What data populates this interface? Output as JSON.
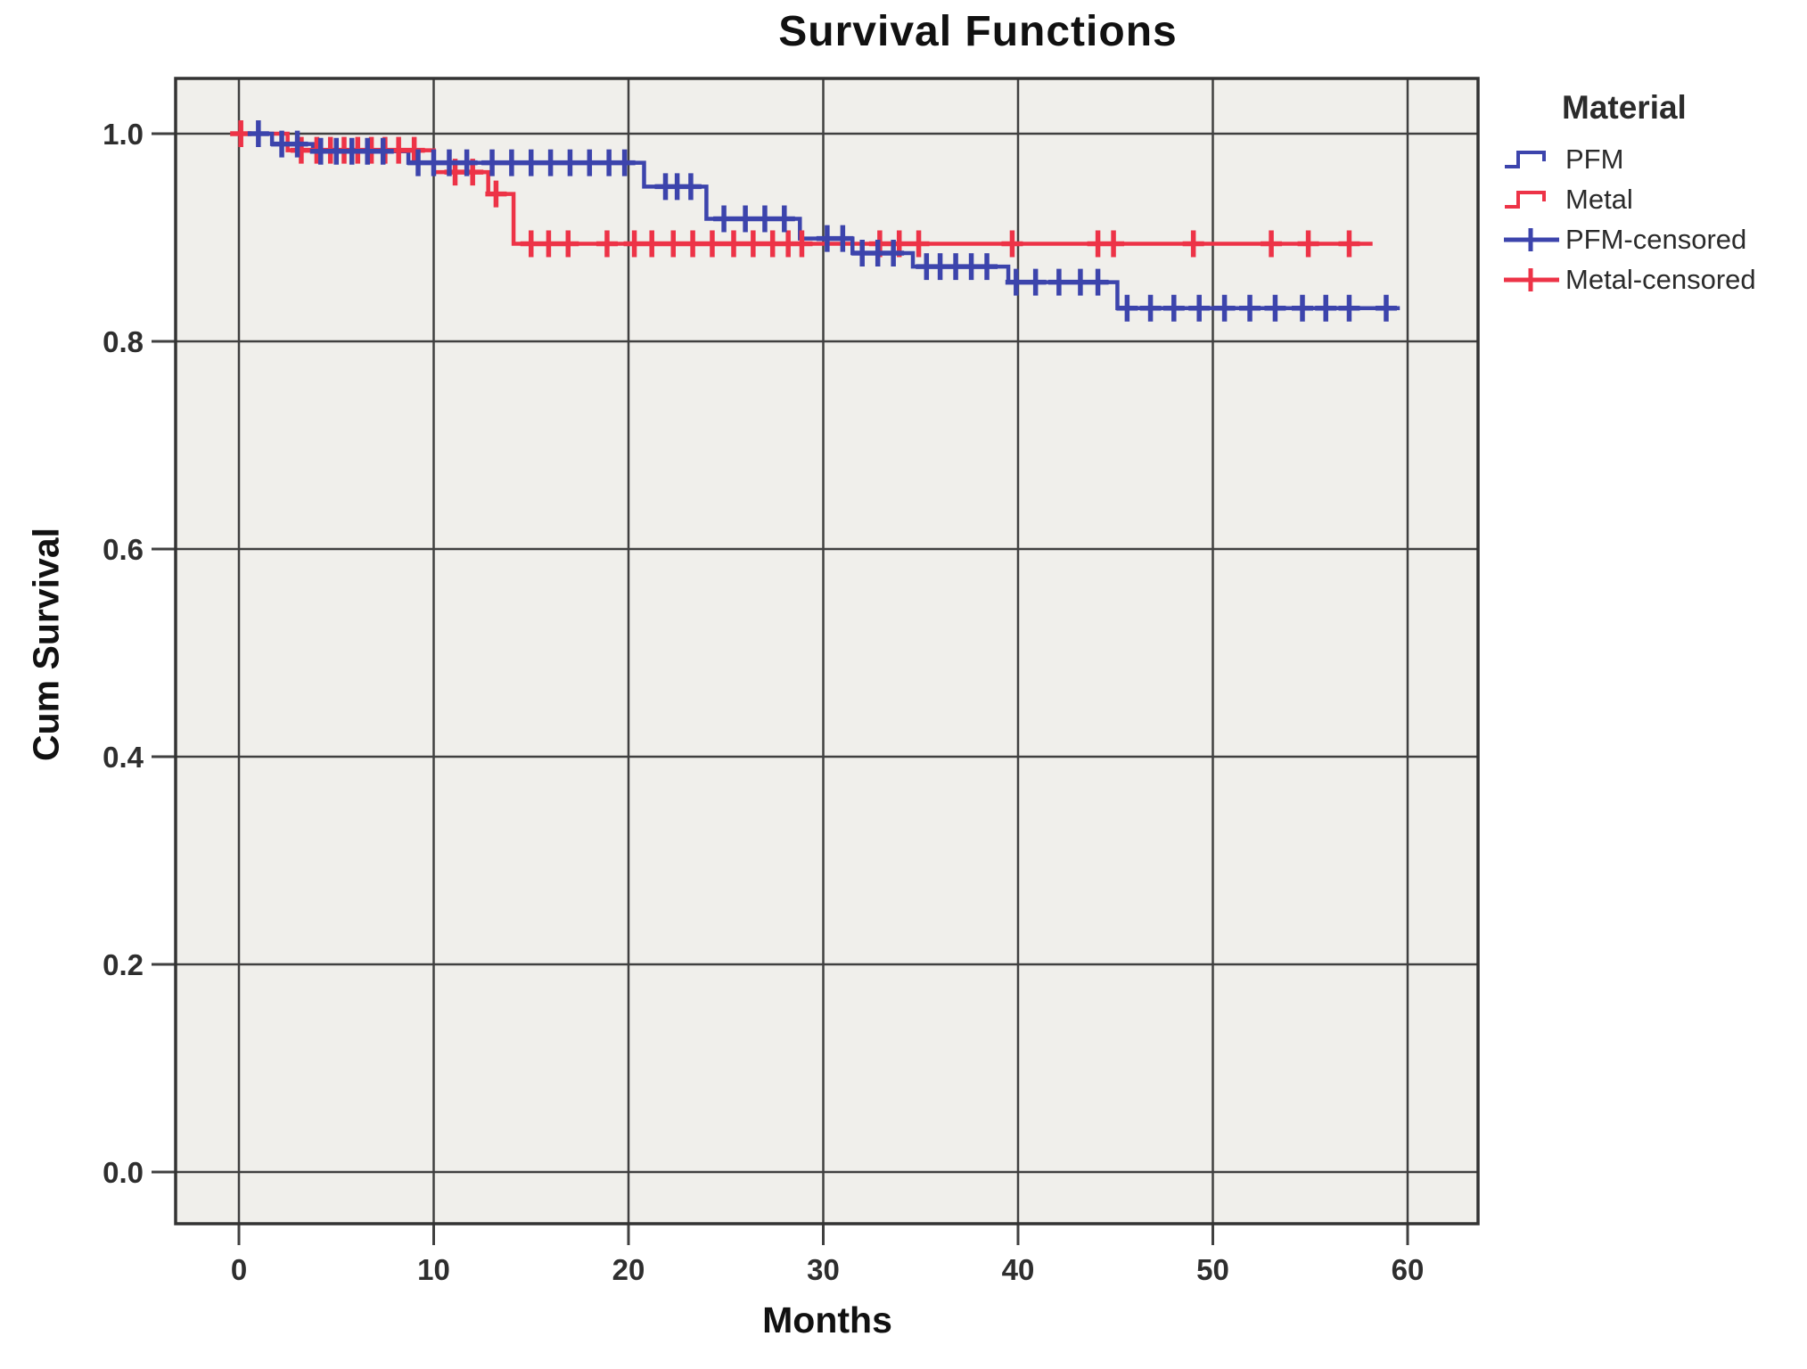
{
  "colors": {
    "pfm": "#3C44AC",
    "metal": "#ED3347",
    "grid": "#404040",
    "border": "#333333",
    "plot_bg": "#f0efeb",
    "text": "#2e2e2e"
  },
  "chart_data": {
    "type": "line",
    "subtype": "kaplan-meier-step",
    "title": "Survival Functions",
    "xlabel": "Months",
    "ylabel": "Cum Survival",
    "legend_title": "Material",
    "legend_position": "top-right",
    "grid": true,
    "xlim": [
      -3.2,
      63.6
    ],
    "ylim": [
      -0.05,
      1.055
    ],
    "xtick_labels": [
      "0",
      "10",
      "20",
      "30",
      "40",
      "50",
      "60"
    ],
    "ytick_labels": [
      "0.0",
      "0.2",
      "0.4",
      "0.6",
      "0.8",
      "1.0"
    ],
    "series": [
      {
        "name": "Metal",
        "color": "#ED3347",
        "kind": "step",
        "steps": [
          [
            0,
            1.0
          ],
          [
            2.5,
            0.984
          ],
          [
            10.0,
            0.963
          ],
          [
            12.8,
            0.942
          ],
          [
            14.1,
            0.894
          ],
          [
            58.2,
            0.894
          ]
        ]
      },
      {
        "name": "PFM",
        "color": "#3C44AC",
        "kind": "step",
        "steps": [
          [
            0,
            1.0
          ],
          [
            1.7,
            0.99
          ],
          [
            3.8,
            0.983
          ],
          [
            8.7,
            0.972
          ],
          [
            20.8,
            0.949
          ],
          [
            24.0,
            0.918
          ],
          [
            28.8,
            0.899
          ],
          [
            31.5,
            0.885
          ],
          [
            34.6,
            0.872
          ],
          [
            39.5,
            0.857
          ],
          [
            45.1,
            0.832
          ],
          [
            59.6,
            0.832
          ]
        ]
      },
      {
        "name": "Metal-censored",
        "color": "#ED3347",
        "kind": "censor",
        "points": [
          [
            0.1,
            1.0
          ],
          [
            3.2,
            0.984
          ],
          [
            4.0,
            0.984
          ],
          [
            4.7,
            0.984
          ],
          [
            5.4,
            0.984
          ],
          [
            6.1,
            0.984
          ],
          [
            6.8,
            0.984
          ],
          [
            7.5,
            0.984
          ],
          [
            8.2,
            0.984
          ],
          [
            9.0,
            0.984
          ],
          [
            11.1,
            0.963
          ],
          [
            12.0,
            0.963
          ],
          [
            13.2,
            0.942
          ],
          [
            15.0,
            0.894
          ],
          [
            15.9,
            0.894
          ],
          [
            16.9,
            0.894
          ],
          [
            18.9,
            0.894
          ],
          [
            20.3,
            0.894
          ],
          [
            21.2,
            0.894
          ],
          [
            22.3,
            0.894
          ],
          [
            23.3,
            0.894
          ],
          [
            24.3,
            0.894
          ],
          [
            25.4,
            0.894
          ],
          [
            26.4,
            0.894
          ],
          [
            27.4,
            0.894
          ],
          [
            28.2,
            0.894
          ],
          [
            28.9,
            0.894
          ],
          [
            32.9,
            0.894
          ],
          [
            33.9,
            0.894
          ],
          [
            34.9,
            0.894
          ],
          [
            39.7,
            0.894
          ],
          [
            44.1,
            0.894
          ],
          [
            44.9,
            0.894
          ],
          [
            49.0,
            0.894
          ],
          [
            53.0,
            0.894
          ],
          [
            54.9,
            0.894
          ],
          [
            57.0,
            0.894
          ]
        ]
      },
      {
        "name": "PFM-censored",
        "color": "#3C44AC",
        "kind": "censor",
        "points": [
          [
            1.0,
            1.0
          ],
          [
            2.2,
            0.99
          ],
          [
            3.0,
            0.99
          ],
          [
            4.2,
            0.983
          ],
          [
            5.0,
            0.983
          ],
          [
            5.8,
            0.983
          ],
          [
            6.6,
            0.983
          ],
          [
            7.4,
            0.983
          ],
          [
            9.2,
            0.972
          ],
          [
            10.0,
            0.972
          ],
          [
            10.8,
            0.972
          ],
          [
            11.7,
            0.972
          ],
          [
            13.0,
            0.972
          ],
          [
            14.0,
            0.972
          ],
          [
            15.0,
            0.972
          ],
          [
            16.0,
            0.972
          ],
          [
            17.0,
            0.972
          ],
          [
            18.0,
            0.972
          ],
          [
            19.0,
            0.972
          ],
          [
            19.8,
            0.972
          ],
          [
            21.9,
            0.949
          ],
          [
            22.5,
            0.949
          ],
          [
            23.2,
            0.949
          ],
          [
            24.9,
            0.918
          ],
          [
            26.0,
            0.918
          ],
          [
            27.0,
            0.918
          ],
          [
            28.0,
            0.918
          ],
          [
            30.2,
            0.899
          ],
          [
            31.0,
            0.899
          ],
          [
            32.0,
            0.885
          ],
          [
            32.8,
            0.885
          ],
          [
            33.6,
            0.885
          ],
          [
            35.3,
            0.872
          ],
          [
            36.0,
            0.872
          ],
          [
            36.8,
            0.872
          ],
          [
            37.6,
            0.872
          ],
          [
            38.4,
            0.872
          ],
          [
            39.9,
            0.857
          ],
          [
            40.9,
            0.857
          ],
          [
            42.1,
            0.857
          ],
          [
            43.2,
            0.857
          ],
          [
            44.1,
            0.857
          ],
          [
            45.6,
            0.832
          ],
          [
            46.8,
            0.832
          ],
          [
            48.0,
            0.832
          ],
          [
            49.3,
            0.832
          ],
          [
            50.6,
            0.832
          ],
          [
            51.9,
            0.832
          ],
          [
            53.2,
            0.832
          ],
          [
            54.6,
            0.832
          ],
          [
            55.8,
            0.832
          ],
          [
            57.0,
            0.832
          ],
          [
            58.9,
            0.832
          ]
        ]
      }
    ],
    "legend_order": [
      "PFM",
      "Metal",
      "PFM-censored",
      "Metal-censored"
    ]
  }
}
